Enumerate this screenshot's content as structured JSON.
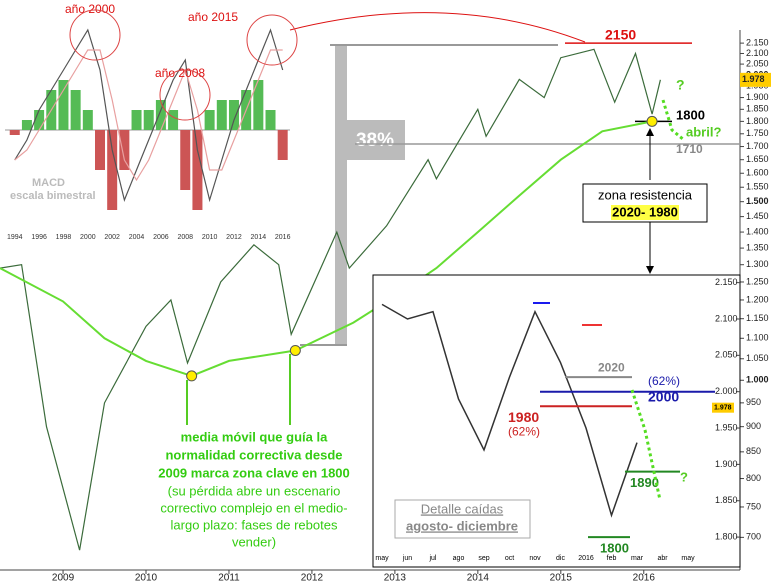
{
  "chart_data": [
    {
      "type": "line",
      "log": true,
      "xlim": [
        2008.24,
        2017.16
      ],
      "xticks": [
        2009,
        2010,
        2011,
        2012,
        2013,
        2014,
        2015,
        2016
      ],
      "ylim": [
        650,
        2190
      ],
      "yticks": [
        700,
        750,
        800,
        850,
        900,
        950,
        {
          "value": 1000,
          "label": "1.000"
        },
        {
          "value": 1050,
          "label": "1.050"
        },
        {
          "value": 1100,
          "label": "1.100"
        },
        {
          "value": 1150,
          "label": "1.150"
        },
        {
          "value": 1200,
          "label": "1.200"
        },
        {
          "value": 1250,
          "label": "1.250"
        },
        {
          "value": 1300,
          "label": "1.300"
        },
        {
          "value": 1350,
          "label": "1.350"
        },
        {
          "value": 1400,
          "label": "1.400"
        },
        {
          "value": 1450,
          "label": "1.450"
        },
        {
          "value": 1500,
          "label": "1.500"
        },
        {
          "value": 1550,
          "label": "1.550"
        },
        {
          "value": 1600,
          "label": "1.600"
        },
        {
          "value": 1650,
          "label": "1.650"
        },
        {
          "value": 1700,
          "label": "1.700"
        },
        {
          "value": 1750,
          "label": "1.750"
        },
        {
          "value": 1800,
          "label": "1.800"
        },
        {
          "value": 1850,
          "label": "1.850"
        },
        {
          "value": 1900,
          "label": "1.900"
        },
        {
          "value": 1950,
          "label": "1.950"
        },
        {
          "value": 2000,
          "label": "2.000"
        },
        {
          "value": 2050,
          "label": "2.050"
        },
        {
          "value": 2100,
          "label": "2.100"
        },
        {
          "value": 2150,
          "label": "2.150"
        }
      ],
      "series": [
        {
          "color": "#3b6b3b",
          "x": [
            2008.24,
            2008.5,
            2008.8,
            2009.2,
            2009.5,
            2010.0,
            2010.3,
            2010.5,
            2010.9,
            2011.3,
            2011.6,
            2011.75,
            2012.3,
            2012.45,
            2012.9,
            2013.4,
            2013.5,
            2014.0,
            2014.1,
            2014.5,
            2014.8,
            2015.0,
            2015.4,
            2015.65,
            2015.9,
            2016.1,
            2016.2
          ],
          "values": [
            1290,
            1300,
            900,
            680,
            950,
            1130,
            1200,
            1040,
            1250,
            1360,
            1300,
            1110,
            1400,
            1290,
            1420,
            1650,
            1580,
            1850,
            1740,
            1980,
            1900,
            2080,
            2120,
            1880,
            2100,
            1830,
            1978
          ]
        },
        {
          "color": "#66dd33",
          "x": [
            2008.24,
            2009.0,
            2009.5,
            2010.0,
            2010.55,
            2011.0,
            2011.8,
            2012.5,
            2013.0,
            2013.5,
            2014.0,
            2014.5,
            2015.0,
            2015.5,
            2016.1
          ],
          "values": [
            1290,
            1196,
            1100,
            1045,
            1010,
            1045,
            1070,
            1140,
            1210,
            1290,
            1400,
            1521,
            1650,
            1760,
            1800
          ]
        }
      ],
      "markers": [
        {
          "x": 2010.55,
          "value": 1010
        },
        {
          "x": 2011.8,
          "value": 1070
        },
        {
          "x": 2016.1,
          "value": 1800
        }
      ],
      "last_label": {
        "value": 1978,
        "label": "1.978"
      },
      "levels": [
        {
          "value": 2150,
          "color": "#dd1111"
        },
        {
          "value": 1800,
          "color": "#000000"
        },
        {
          "value": 1710,
          "color": "#999999"
        }
      ],
      "annotations": {
        "pct": "38%",
        "zone": "zona resistencia",
        "zone_range": "2020- 1980",
        "april": "abril?",
        "question": "?"
      },
      "caption_bold": [
        "media móvil que guía la",
        "normalidad correctiva desde",
        "2009 marca zona clave en 1800"
      ],
      "caption": [
        "(su pérdida abre un escenario",
        "correctivo complejo en el medio-",
        "largo plazo: fases de rebotes",
        "vender)"
      ]
    },
    {
      "type": "bar",
      "xlim": [
        1993.2,
        2016.6
      ],
      "xticks": [
        1994,
        1996,
        1998,
        2000,
        2002,
        2004,
        2006,
        2008,
        2010,
        2012,
        2014,
        2016
      ],
      "ylim": [
        -8,
        12
      ],
      "x": [
        1994,
        1995,
        1996,
        1997,
        1998,
        1999,
        2000,
        2001,
        2002,
        2003,
        2004,
        2005,
        2006,
        2007,
        2008,
        2009,
        2010,
        2011,
        2012,
        2013,
        2014,
        2015,
        2016
      ],
      "values": [
        -0.5,
        1,
        2,
        4,
        5,
        4,
        2,
        -4,
        -8,
        -4,
        2,
        2,
        3,
        2,
        -6,
        -8,
        2,
        3,
        3,
        4,
        5,
        2,
        -3
      ],
      "lines": [
        {
          "color": "#555555",
          "values": [
            -3,
            -1,
            2,
            4,
            6,
            8,
            10,
            6,
            -2,
            -7,
            -4,
            -1,
            2,
            5,
            7,
            -2,
            -7,
            -3,
            1,
            4,
            7,
            10,
            6
          ]
        },
        {
          "color": "#e8a0a0",
          "values": [
            -3,
            -2,
            0,
            2,
            4,
            6,
            8,
            8,
            3,
            -3,
            -5,
            -3,
            0,
            3,
            6,
            2,
            -4,
            -4,
            -1,
            2,
            5,
            8,
            8
          ]
        }
      ],
      "title": "MACD",
      "subtitle": "escala bimestral",
      "annotations": [
        {
          "text": "año 2000"
        },
        {
          "text": "año 2008"
        },
        {
          "text": "año 2015"
        }
      ]
    },
    {
      "type": "line",
      "categories": [
        "may",
        "jun",
        "jul",
        "ago",
        "sep",
        "oct",
        "nov",
        "dic",
        "2016",
        "feb",
        "mar",
        "abr",
        "may"
      ],
      "values": [
        2120,
        2100,
        2110,
        1990,
        1920,
        2020,
        2110,
        2040,
        1950,
        1830,
        1930,
        null,
        null
      ],
      "ylim": [
        1785,
        2155
      ],
      "yticks": [
        {
          "value": 1800,
          "label": "1.800"
        },
        {
          "value": 1850,
          "label": "1.850"
        },
        {
          "value": 1900,
          "label": "1.900"
        },
        {
          "value": 1950,
          "label": "1.950"
        },
        {
          "value": 2000,
          "label": "2.000"
        },
        {
          "value": 2050,
          "label": "2.050"
        },
        {
          "value": 2100,
          "label": "2.100"
        },
        {
          "value": 2150,
          "label": "2.150"
        }
      ],
      "last_label": {
        "value": 1978,
        "label": "1.978"
      },
      "levels": [
        {
          "value": 2020,
          "color": "#888888"
        },
        {
          "value": 2000,
          "color": "#1a1aaa",
          "note": "(62%)"
        },
        {
          "value": 1980,
          "color": "#cc2222",
          "note": "(62%)"
        },
        {
          "value": 1890,
          "color": "#228822"
        },
        {
          "value": 1800,
          "color": "#228822"
        }
      ],
      "title": "Detalle caídas",
      "subtitle": "agosto- diciembre"
    }
  ]
}
